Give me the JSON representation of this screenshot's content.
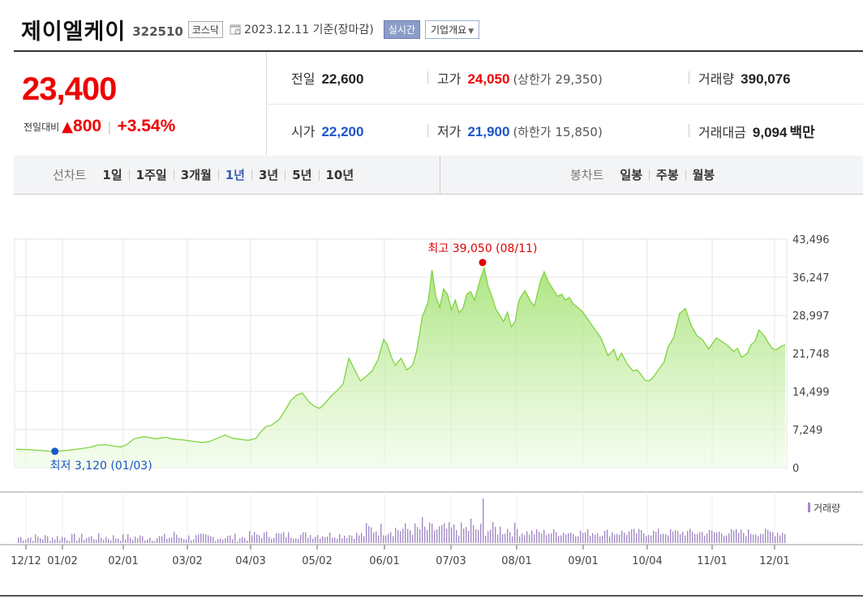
{
  "header": {
    "stock_name": "제이엘케이",
    "stock_code": "322510",
    "market": "코스닥",
    "date_text": "2023.12.11 기준(장마감)",
    "realtime_label": "실시간",
    "company_overview_label": "기업개요"
  },
  "quote": {
    "price": "23,400",
    "change_label": "전일대비",
    "change_arrow": "▲",
    "change_value": "800",
    "change_percent": "+3.54%",
    "prev_close_label": "전일",
    "prev_close": "22,600",
    "high_label": "고가",
    "high": "24,050",
    "upper_limit_label": "(상한가 29,350)",
    "volume_label": "거래량",
    "volume": "390,076",
    "open_label": "시가",
    "open": "22,200",
    "low_label": "저가",
    "low": "21,900",
    "lower_limit_label": "(하한가 15,850)",
    "amount_label": "거래대금",
    "amount": "9,094",
    "amount_unit": "백만"
  },
  "period_bar": {
    "line_chart_label": "선차트",
    "line_options": [
      "1일",
      "1주일",
      "3개월",
      "1년",
      "3년",
      "5년",
      "10년"
    ],
    "active_option": "1년",
    "candle_chart_label": "봉차트",
    "candle_options": [
      "일봉",
      "주봉",
      "월봉"
    ]
  },
  "chart_data": {
    "type": "area",
    "y_ticks": [
      "43,496",
      "36,247",
      "28,997",
      "21,748",
      "14,499",
      "7,249",
      "0"
    ],
    "ylim": [
      0,
      43496
    ],
    "x_ticks": [
      "12/12",
      "01/02",
      "02/01",
      "03/02",
      "04/03",
      "05/02",
      "06/01",
      "07/03",
      "08/01",
      "09/01",
      "10/04",
      "11/01",
      "12/01"
    ],
    "max_annotation": "최고 39,050 (08/11)",
    "min_annotation": "최저 3,120 (01/03)",
    "volume_legend": "거래량",
    "colors": {
      "line": "#7fd43f",
      "fill": "#d9f5c2",
      "max": "#e00000",
      "min": "#1a56c8",
      "volume": "#a48ac8"
    },
    "series": [
      {
        "values": [
          [
            0,
            3500
          ],
          [
            0.3,
            3450
          ],
          [
            0.6,
            3300
          ],
          [
            0.85,
            3150
          ],
          [
            1.0,
            3120
          ],
          [
            1.3,
            3300
          ],
          [
            1.6,
            3550
          ],
          [
            1.9,
            3850
          ],
          [
            2.1,
            4300
          ],
          [
            2.3,
            4400
          ],
          [
            2.5,
            4150
          ],
          [
            2.7,
            3950
          ],
          [
            2.85,
            4350
          ],
          [
            3.05,
            5500
          ],
          [
            3.3,
            5900
          ],
          [
            3.6,
            5500
          ],
          [
            3.9,
            5800
          ],
          [
            4.0,
            5500
          ],
          [
            4.3,
            5300
          ],
          [
            4.6,
            5000
          ],
          [
            4.8,
            4800
          ],
          [
            5.0,
            5000
          ],
          [
            5.2,
            5600
          ],
          [
            5.4,
            6200
          ],
          [
            5.6,
            5600
          ],
          [
            5.8,
            5400
          ],
          [
            6.0,
            5200
          ],
          [
            6.2,
            5600
          ],
          [
            6.3,
            6600
          ],
          [
            6.45,
            7800
          ],
          [
            6.6,
            8100
          ],
          [
            6.8,
            9200
          ],
          [
            6.95,
            10900
          ],
          [
            7.1,
            12800
          ],
          [
            7.25,
            13800
          ],
          [
            7.4,
            14200
          ],
          [
            7.55,
            12700
          ],
          [
            7.7,
            11700
          ],
          [
            7.85,
            11300
          ],
          [
            8.0,
            12400
          ],
          [
            8.15,
            13700
          ],
          [
            8.3,
            14700
          ],
          [
            8.45,
            15900
          ],
          [
            8.6,
            20800
          ],
          [
            8.75,
            18600
          ],
          [
            8.9,
            16500
          ],
          [
            9.05,
            17400
          ],
          [
            9.2,
            18400
          ],
          [
            9.35,
            20500
          ],
          [
            9.5,
            24400
          ],
          [
            9.6,
            23300
          ],
          [
            9.7,
            21000
          ],
          [
            9.8,
            19500
          ],
          [
            9.95,
            20800
          ],
          [
            10.1,
            18600
          ],
          [
            10.25,
            19500
          ],
          [
            10.35,
            22100
          ],
          [
            10.5,
            28700
          ],
          [
            10.65,
            31600
          ],
          [
            10.75,
            37600
          ],
          [
            10.85,
            32600
          ],
          [
            10.95,
            30500
          ],
          [
            11.05,
            34000
          ],
          [
            11.15,
            33000
          ],
          [
            11.25,
            30000
          ],
          [
            11.35,
            31900
          ],
          [
            11.45,
            29500
          ],
          [
            11.55,
            30300
          ],
          [
            11.65,
            33000
          ],
          [
            11.75,
            33500
          ],
          [
            11.85,
            31900
          ],
          [
            12.0,
            35900
          ],
          [
            12.1,
            38000
          ],
          [
            12.2,
            34500
          ],
          [
            12.3,
            32600
          ],
          [
            12.4,
            30200
          ],
          [
            12.5,
            29000
          ],
          [
            12.6,
            27800
          ],
          [
            12.7,
            29600
          ],
          [
            12.8,
            26800
          ],
          [
            12.9,
            27800
          ],
          [
            13.0,
            31900
          ],
          [
            13.15,
            33700
          ],
          [
            13.3,
            31600
          ],
          [
            13.4,
            30800
          ],
          [
            13.55,
            35400
          ],
          [
            13.65,
            37300
          ],
          [
            13.75,
            35500
          ],
          [
            13.9,
            33700
          ],
          [
            14.0,
            32600
          ],
          [
            14.1,
            33000
          ],
          [
            14.2,
            31900
          ],
          [
            14.3,
            32400
          ],
          [
            14.4,
            31200
          ],
          [
            14.5,
            30600
          ],
          [
            14.65,
            29600
          ],
          [
            14.8,
            28000
          ],
          [
            14.95,
            26400
          ],
          [
            15.1,
            24900
          ],
          [
            15.2,
            23200
          ],
          [
            15.3,
            21300
          ],
          [
            15.45,
            22500
          ],
          [
            15.55,
            20400
          ],
          [
            15.65,
            21800
          ],
          [
            15.8,
            19700
          ],
          [
            15.95,
            18400
          ],
          [
            16.05,
            18600
          ],
          [
            16.15,
            17800
          ],
          [
            16.25,
            16700
          ],
          [
            16.35,
            16500
          ],
          [
            16.45,
            17000
          ],
          [
            16.6,
            18600
          ],
          [
            16.75,
            20100
          ],
          [
            16.85,
            22900
          ],
          [
            17.0,
            24800
          ],
          [
            17.15,
            29300
          ],
          [
            17.3,
            30300
          ],
          [
            17.45,
            27100
          ],
          [
            17.6,
            25100
          ],
          [
            17.75,
            24300
          ],
          [
            17.9,
            22600
          ],
          [
            18.0,
            23600
          ],
          [
            18.1,
            24700
          ],
          [
            18.25,
            24000
          ],
          [
            18.4,
            23200
          ],
          [
            18.55,
            22100
          ],
          [
            18.65,
            22700
          ],
          [
            18.75,
            21000
          ],
          [
            18.9,
            21700
          ],
          [
            19.0,
            23400
          ],
          [
            19.1,
            24000
          ],
          [
            19.2,
            26200
          ],
          [
            19.35,
            25000
          ],
          [
            19.45,
            23700
          ],
          [
            19.55,
            22700
          ],
          [
            19.65,
            22400
          ],
          [
            19.75,
            23000
          ],
          [
            19.88,
            23400
          ]
        ]
      }
    ]
  }
}
